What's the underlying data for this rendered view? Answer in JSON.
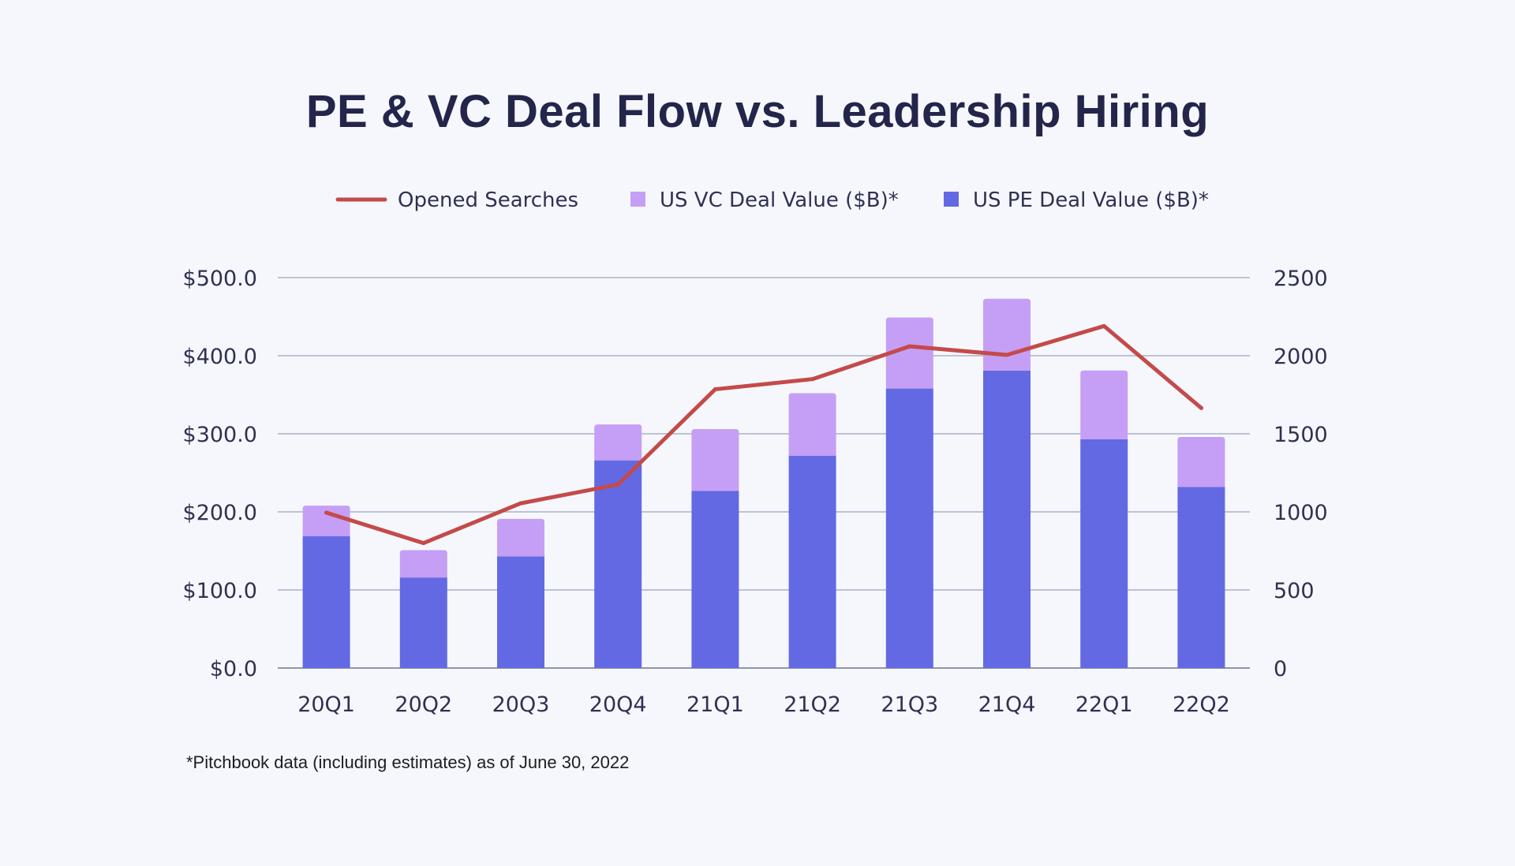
{
  "chart_data": {
    "type": "bar",
    "title": "PE & VC Deal Flow vs. Leadership Hiring",
    "categories": [
      "20Q1",
      "20Q2",
      "20Q3",
      "20Q4",
      "21Q1",
      "21Q2",
      "21Q3",
      "21Q4",
      "22Q1",
      "22Q2"
    ],
    "series": [
      {
        "name": "US PE Deal Value ($B)*",
        "kind": "stacked-bar",
        "axis": "left",
        "color": "#6369e3",
        "values": [
          169,
          116,
          143,
          266,
          227,
          272,
          358,
          381,
          293,
          232
        ]
      },
      {
        "name": "US VC Deal Value ($B)*",
        "kind": "stacked-bar",
        "axis": "left",
        "color": "#c59ff5",
        "values": [
          39,
          35,
          48,
          46,
          79,
          80,
          91,
          92,
          88,
          64
        ]
      },
      {
        "name": "Opened Searches",
        "kind": "line",
        "axis": "right",
        "color": "#c44a4a",
        "values": [
          995,
          800,
          1055,
          1175,
          1785,
          1850,
          2060,
          2005,
          2190,
          1665
        ]
      }
    ],
    "y_left": {
      "ticks": [
        "$0.0",
        "$100.0",
        "$200.0",
        "$300.0",
        "$400.0",
        "$500.0"
      ],
      "range": [
        0,
        500
      ]
    },
    "y_right": {
      "ticks": [
        "0",
        "500",
        "1000",
        "1500",
        "2000",
        "2500"
      ],
      "range": [
        0,
        2500
      ]
    },
    "legend": {
      "position": "top",
      "order": [
        "Opened Searches",
        "US VC Deal Value ($B)*",
        "US PE Deal Value ($B)*"
      ]
    },
    "grid": true,
    "footnote": "*Pitchbook data (including estimates) as of June 30, 2022"
  }
}
